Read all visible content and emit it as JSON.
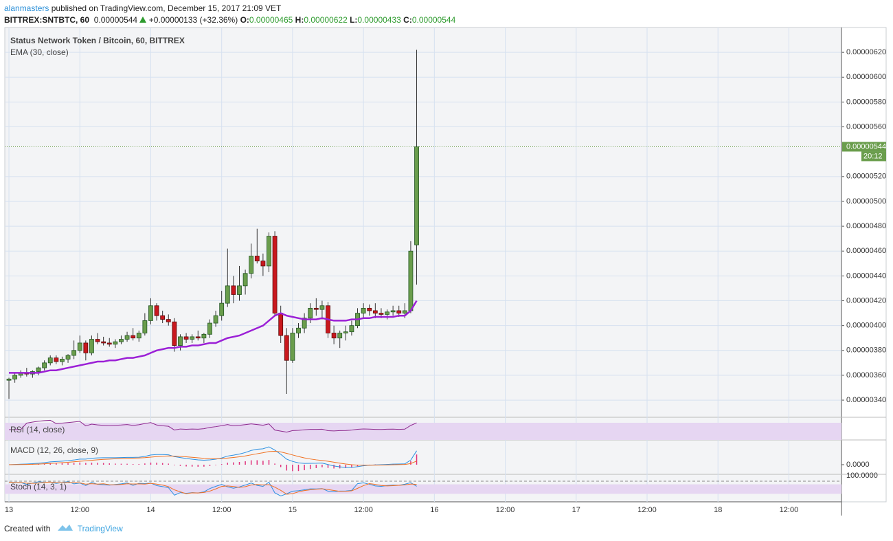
{
  "header": {
    "user": "alanmasters",
    "published": "published on TradingView.com, December 15, 2017 21:09 VET",
    "symbol": "BITTREX:SNTBTC, 60",
    "last": "0.00000544",
    "change": "+0.00000133 (+32.36%)",
    "ohlc": [
      {
        "label": "O:",
        "value": "0.00000465"
      },
      {
        "label": "H:",
        "value": "0.00000622"
      },
      {
        "label": "L:",
        "value": "0.00000433"
      },
      {
        "label": "C:",
        "value": "0.00000544"
      }
    ]
  },
  "chart_data": {
    "type": "candlestick",
    "title": "Status Network Token / Bitcoin, 60, BITTREX",
    "x": [
      0,
      1,
      2,
      3,
      4,
      5,
      6,
      7,
      8,
      9,
      10,
      11,
      12,
      13,
      14,
      15,
      16,
      17,
      18,
      19,
      20,
      21,
      22,
      23,
      24,
      25,
      26,
      27,
      28,
      29,
      30,
      31,
      32,
      33,
      34,
      35,
      36,
      37,
      38,
      39,
      40,
      41,
      42,
      43,
      44,
      45,
      46,
      47,
      48,
      49,
      50,
      51,
      52,
      53,
      54,
      55,
      56,
      57,
      58,
      59,
      60,
      61,
      62,
      63,
      64,
      65,
      66,
      67,
      68,
      69
    ],
    "open": [
      3.56e-06,
      3.57e-06,
      3.6e-06,
      3.62e-06,
      3.61e-06,
      3.63e-06,
      3.66e-06,
      3.7e-06,
      3.74e-06,
      3.71e-06,
      3.73e-06,
      3.76e-06,
      3.8e-06,
      3.86e-06,
      3.78e-06,
      3.89e-06,
      3.87e-06,
      3.86e-06,
      3.85e-06,
      3.87e-06,
      3.89e-06,
      3.92e-06,
      3.9e-06,
      3.94e-06,
      4.04e-06,
      4.16e-06,
      4.08e-06,
      4.05e-06,
      4.03e-06,
      3.84e-06,
      3.91e-06,
      3.89e-06,
      3.91e-06,
      3.9e-06,
      3.93e-06,
      4.02e-06,
      4.08e-06,
      4.18e-06,
      4.32e-06,
      4.25e-06,
      4.32e-06,
      4.42e-06,
      4.56e-06,
      4.52e-06,
      4.48e-06,
      4.72e-06,
      4.1e-06,
      3.92e-06,
      3.72e-06,
      3.94e-06,
      3.98e-06,
      4.06e-06,
      4.14e-06,
      4.13e-06,
      4.16e-06,
      3.94e-06,
      3.9e-06,
      3.94e-06,
      3.95e-06,
      4e-06,
      4.1e-06,
      4.14e-06,
      4.12e-06,
      4.1e-06,
      4.09e-06,
      4.11e-06,
      4.12e-06,
      4.1e-06,
      4.12e-06,
      4.65e-06
    ],
    "high": [
      3.58e-06,
      3.62e-06,
      3.64e-06,
      3.66e-06,
      3.64e-06,
      3.67e-06,
      3.72e-06,
      3.76e-06,
      3.76e-06,
      3.75e-06,
      3.77e-06,
      3.88e-06,
      3.92e-06,
      3.88e-06,
      3.92e-06,
      3.94e-06,
      3.91e-06,
      3.9e-06,
      3.89e-06,
      3.92e-06,
      3.95e-06,
      3.98e-06,
      3.96e-06,
      4.1e-06,
      4.22e-06,
      4.18e-06,
      4.12e-06,
      4.09e-06,
      4.06e-06,
      3.93e-06,
      3.94e-06,
      3.93e-06,
      3.96e-06,
      3.94e-06,
      4.05e-06,
      4.12e-06,
      4.28e-06,
      4.62e-06,
      4.4e-06,
      4.48e-06,
      4.45e-06,
      4.66e-06,
      4.78e-06,
      4.58e-06,
      4.75e-06,
      4.76e-06,
      4.16e-06,
      3.98e-06,
      3.98e-06,
      4.02e-06,
      4.1e-06,
      4.18e-06,
      4.22e-06,
      4.2e-06,
      4.19e-06,
      4e-06,
      3.96e-06,
      4e-06,
      4.04e-06,
      4.14e-06,
      4.18e-06,
      4.17e-06,
      4.18e-06,
      4.14e-06,
      4.13e-06,
      4.16e-06,
      4.16e-06,
      4.18e-06,
      4.68e-06,
      6.22e-06
    ],
    "low": [
      3.41e-06,
      3.54e-06,
      3.58e-06,
      3.59e-06,
      3.58e-06,
      3.6e-06,
      3.64e-06,
      3.68e-06,
      3.69e-06,
      3.68e-06,
      3.7e-06,
      3.73e-06,
      3.78e-06,
      3.72e-06,
      3.76e-06,
      3.85e-06,
      3.84e-06,
      3.83e-06,
      3.82e-06,
      3.85e-06,
      3.87e-06,
      3.88e-06,
      3.87e-06,
      3.92e-06,
      4.01e-06,
      4.04e-06,
      4.02e-06,
      4e-06,
      3.79e-06,
      3.8e-06,
      3.86e-06,
      3.86e-06,
      3.88e-06,
      3.86e-06,
      3.9e-06,
      3.99e-06,
      4.04e-06,
      4.15e-06,
      4.18e-06,
      4.2e-06,
      4.25e-06,
      4.38e-06,
      4.5e-06,
      4.4e-06,
      4.43e-06,
      4.08e-06,
      3.86e-06,
      3.45e-06,
      3.7e-06,
      3.9e-06,
      3.94e-06,
      4.02e-06,
      4.08e-06,
      4.05e-06,
      3.9e-06,
      3.85e-06,
      3.82e-06,
      3.88e-06,
      3.92e-06,
      3.98e-06,
      4.06e-06,
      4.08e-06,
      4.06e-06,
      4.06e-06,
      4.05e-06,
      4.08e-06,
      4.07e-06,
      4.06e-06,
      4.1e-06,
      4.33e-06
    ],
    "close": [
      3.57e-06,
      3.6e-06,
      3.62e-06,
      3.61e-06,
      3.63e-06,
      3.66e-06,
      3.7e-06,
      3.74e-06,
      3.71e-06,
      3.73e-06,
      3.76e-06,
      3.8e-06,
      3.86e-06,
      3.78e-06,
      3.89e-06,
      3.87e-06,
      3.86e-06,
      3.85e-06,
      3.87e-06,
      3.89e-06,
      3.92e-06,
      3.9e-06,
      3.94e-06,
      4.04e-06,
      4.16e-06,
      4.08e-06,
      4.05e-06,
      4.03e-06,
      3.84e-06,
      3.91e-06,
      3.89e-06,
      3.91e-06,
      3.9e-06,
      3.93e-06,
      4.02e-06,
      4.08e-06,
      4.18e-06,
      4.32e-06,
      4.25e-06,
      4.32e-06,
      4.42e-06,
      4.56e-06,
      4.52e-06,
      4.48e-06,
      4.72e-06,
      4.1e-06,
      3.92e-06,
      3.72e-06,
      3.94e-06,
      3.98e-06,
      4.06e-06,
      4.14e-06,
      4.13e-06,
      4.16e-06,
      3.94e-06,
      3.9e-06,
      3.94e-06,
      3.95e-06,
      4e-06,
      4.1e-06,
      4.14e-06,
      4.12e-06,
      4.1e-06,
      4.09e-06,
      4.11e-06,
      4.12e-06,
      4.1e-06,
      4.12e-06,
      4.6e-06,
      5.44e-06
    ],
    "up_color": "#6a9d4c",
    "down_color": "#c9181e",
    "ema": {
      "name": "EMA (30, close)",
      "color": "#9b1fd6",
      "values": [
        3.62e-06,
        3.62e-06,
        3.62e-06,
        3.62e-06,
        3.62e-06,
        3.62e-06,
        3.63e-06,
        3.64e-06,
        3.64e-06,
        3.65e-06,
        3.66e-06,
        3.67e-06,
        3.68e-06,
        3.69e-06,
        3.7e-06,
        3.71e-06,
        3.71e-06,
        3.72e-06,
        3.72e-06,
        3.73e-06,
        3.74e-06,
        3.74e-06,
        3.75e-06,
        3.76e-06,
        3.78e-06,
        3.8e-06,
        3.81e-06,
        3.82e-06,
        3.82e-06,
        3.83e-06,
        3.83e-06,
        3.84e-06,
        3.84e-06,
        3.85e-06,
        3.86e-06,
        3.86e-06,
        3.88e-06,
        3.9e-06,
        3.91e-06,
        3.92e-06,
        3.94e-06,
        3.96e-06,
        3.98e-06,
        4e-06,
        4.04e-06,
        4.08e-06,
        4.1e-06,
        4.08e-06,
        4.07e-06,
        4.06e-06,
        4.05e-06,
        4.05e-06,
        4.05e-06,
        4.06e-06,
        4.05e-06,
        4.04e-06,
        4.04e-06,
        4.04e-06,
        4.05e-06,
        4.05e-06,
        4.06e-06,
        4.06e-06,
        4.07e-06,
        4.07e-06,
        4.07e-06,
        4.07e-06,
        4.08e-06,
        4.08e-06,
        4.12e-06,
        4.2e-06
      ]
    },
    "last_price": {
      "value": 5.44e-06,
      "label": "0.00000544"
    },
    "countdown": "20:12",
    "xlim": [
      -0.7,
      140.9
    ],
    "xticks": [
      {
        "value": 0,
        "label": "13"
      },
      {
        "value": 12,
        "label": "12:00"
      },
      {
        "value": 24,
        "label": "14"
      },
      {
        "value": 36,
        "label": "12:00"
      },
      {
        "value": 48,
        "label": "15"
      },
      {
        "value": 60,
        "label": "12:00"
      },
      {
        "value": 72,
        "label": "16"
      },
      {
        "value": 84,
        "label": "12:00"
      },
      {
        "value": 96,
        "label": "17"
      },
      {
        "value": 108,
        "label": "12:00"
      },
      {
        "value": 120,
        "label": "18"
      },
      {
        "value": 132,
        "label": "12:00"
      }
    ],
    "ylim": [
      3.262e-06,
      6.4e-06
    ],
    "yticks": [
      {
        "value": 3.4e-06,
        "label": "0.00000340"
      },
      {
        "value": 3.6e-06,
        "label": "0.00000360"
      },
      {
        "value": 3.8e-06,
        "label": "0.00000380"
      },
      {
        "value": 4e-06,
        "label": "0.00000400"
      },
      {
        "value": 4.2e-06,
        "label": "0.00000420"
      },
      {
        "value": 4.4e-06,
        "label": "0.00000440"
      },
      {
        "value": 4.6e-06,
        "label": "0.00000460"
      },
      {
        "value": 4.8e-06,
        "label": "0.00000480"
      },
      {
        "value": 5e-06,
        "label": "0.00000500"
      },
      {
        "value": 5.2e-06,
        "label": "0.00000520"
      },
      {
        "value": 5.6e-06,
        "label": "0.00000560"
      },
      {
        "value": 5.8e-06,
        "label": "0.00000580"
      },
      {
        "value": 6e-06,
        "label": "0.00000600"
      },
      {
        "value": 6.2e-06,
        "label": "0.00000620"
      }
    ],
    "grid": true,
    "indicators": [
      {
        "name": "RSI (14, close)"
      },
      {
        "name": "MACD (12, 26, close, 9)",
        "ticks": [
          {
            "value": 0,
            "label": "0.0000"
          }
        ]
      },
      {
        "name": "Stoch (14, 3, 1)",
        "ticks": [
          {
            "value": 100,
            "label": "100.0000"
          }
        ]
      }
    ]
  },
  "footer": {
    "created": "Created with",
    "brand": "TradingView"
  }
}
